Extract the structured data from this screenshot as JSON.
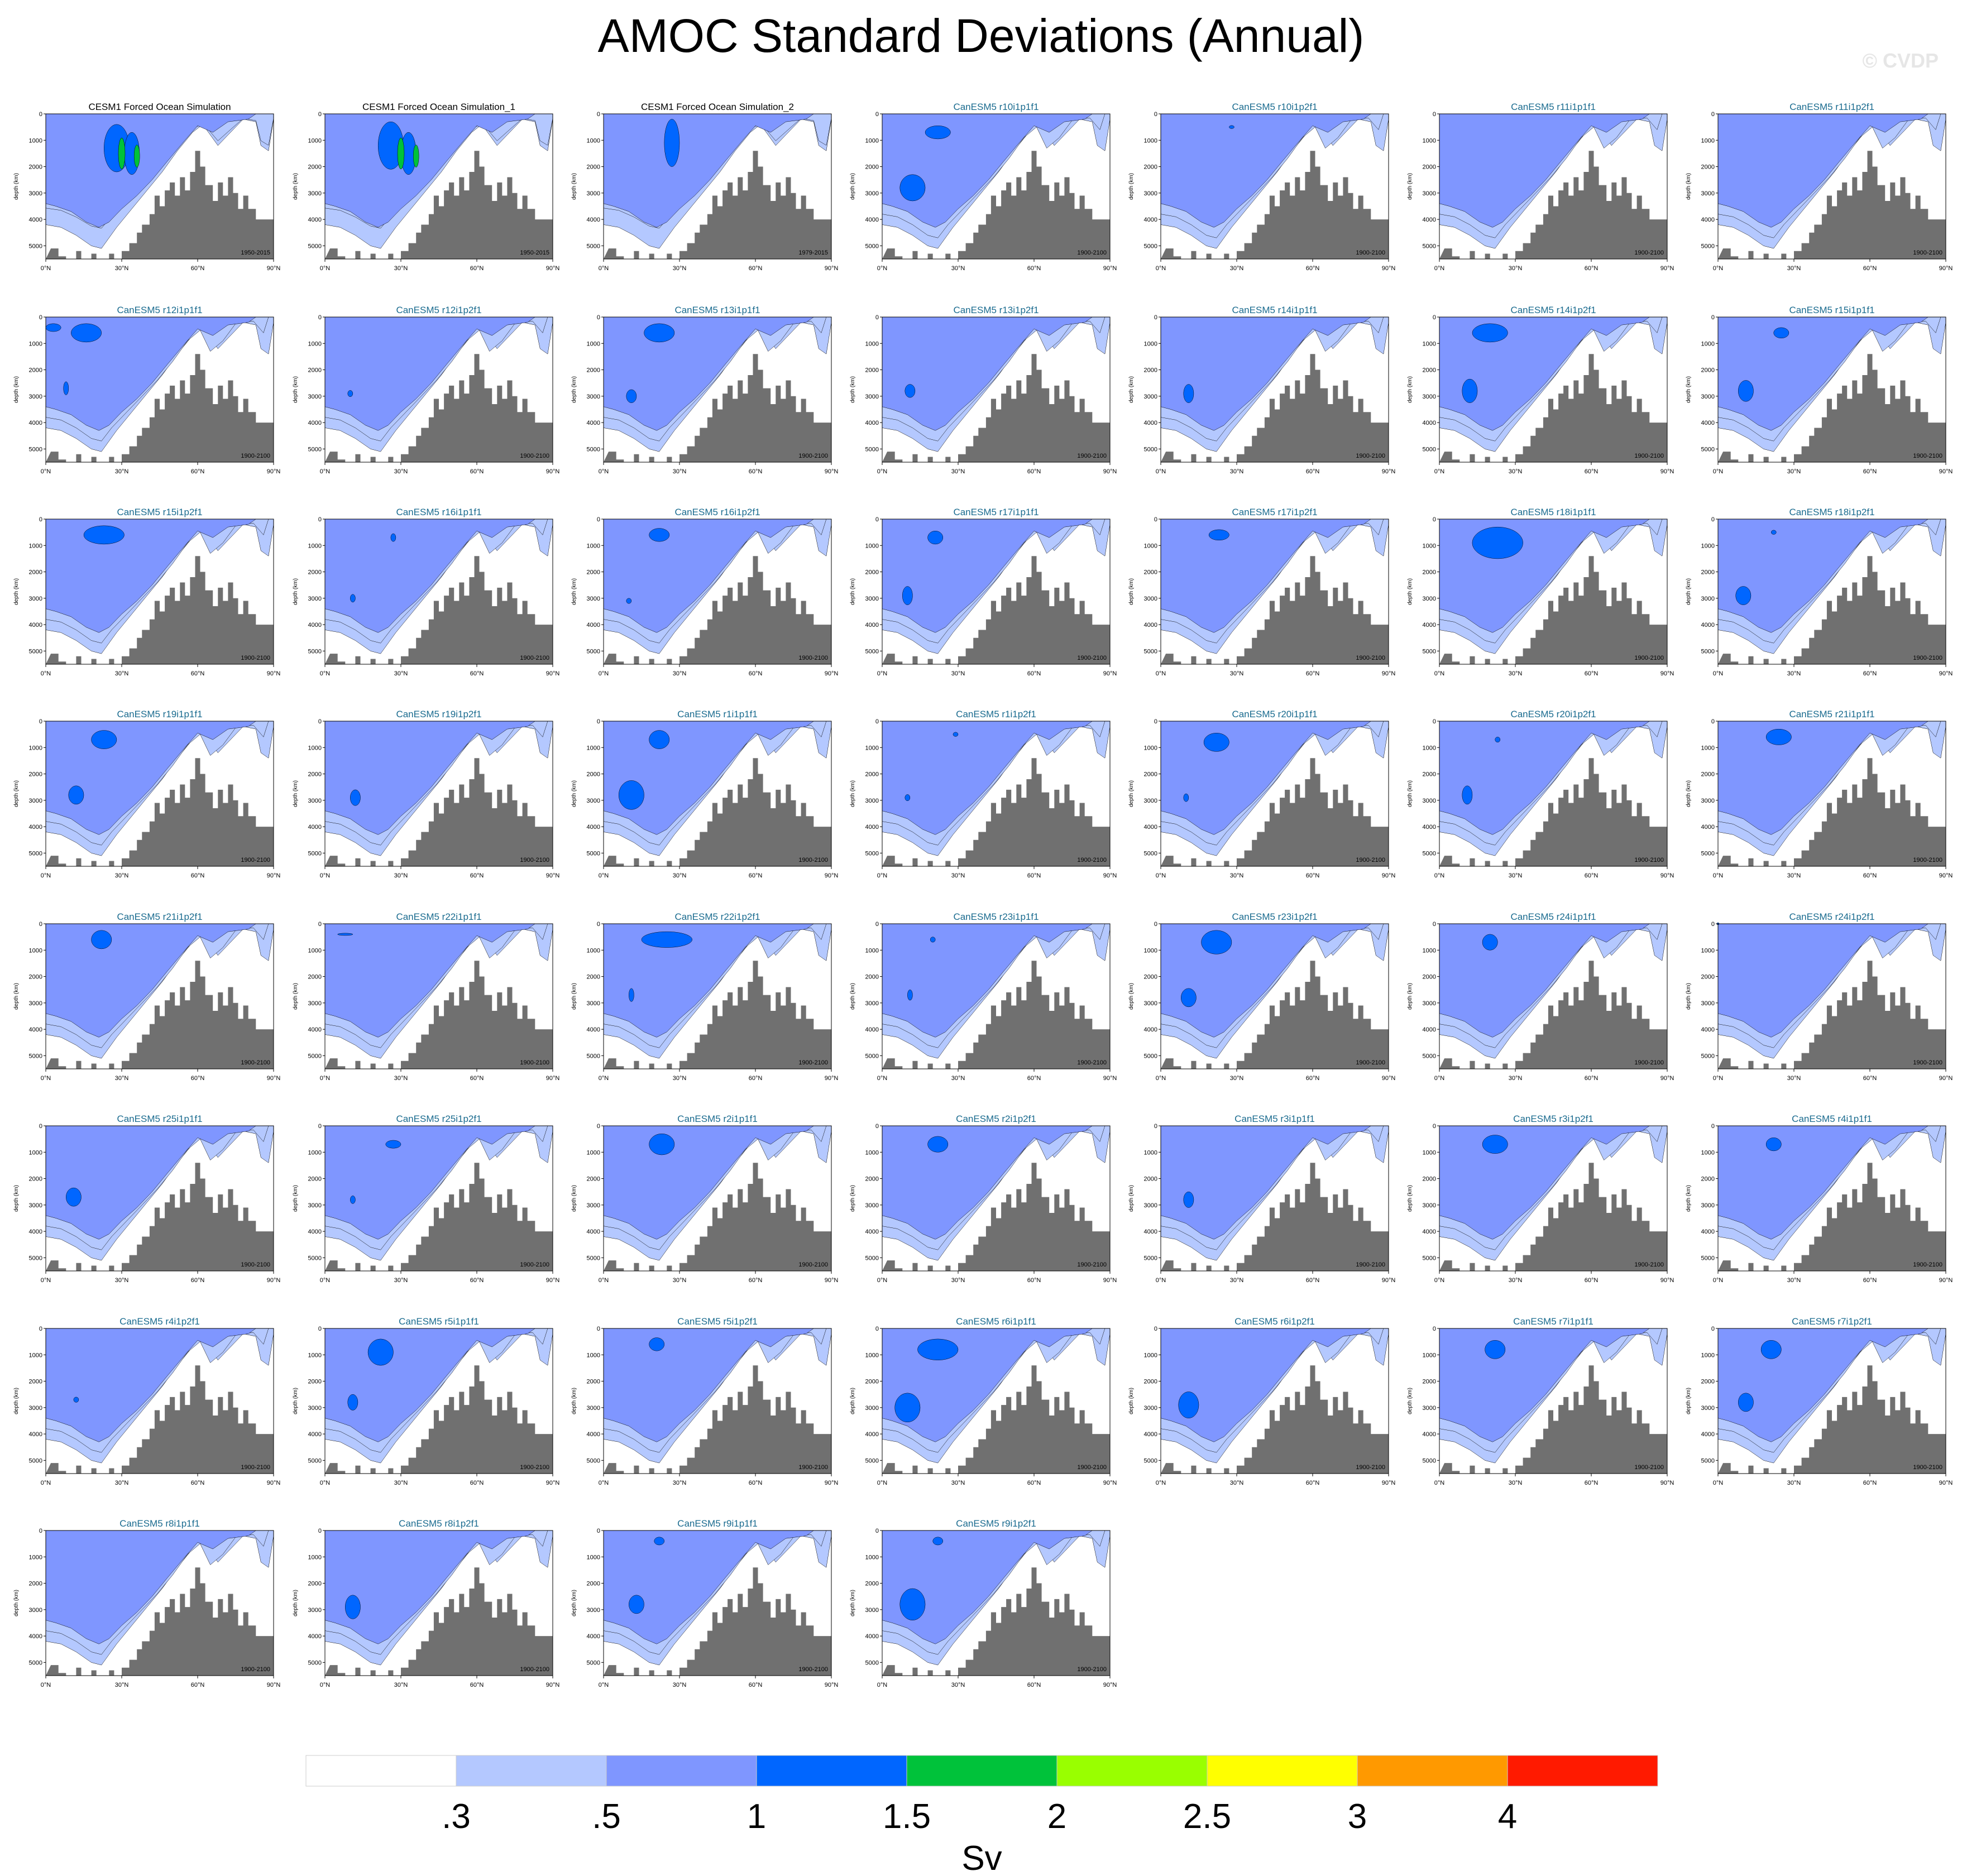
{
  "title": "AMOC Standard Deviations (Annual)",
  "watermark": "© CVDP",
  "colors": {
    "levels": [
      "#ffffff",
      "#b4c8ff",
      "#7f96ff",
      "#0066ff",
      "#00c23a",
      "#99ff00",
      "#ffff00",
      "#ff9900",
      "#ff1a00"
    ],
    "topography": "#707070",
    "title_cesm": "#000000",
    "title_canesm": "#1a6b8f"
  },
  "chart_data": {
    "type": "contour",
    "units": "Sv",
    "colorbar_labels": [
      ".3",
      ".5",
      "1",
      "1.5",
      "2",
      "2.5",
      "3",
      "4"
    ],
    "x_ticks": [
      "0°N",
      "30°N",
      "60°N",
      "90°N"
    ],
    "y_ticks": [
      "1000",
      "2000",
      "3000",
      "4000",
      "5000"
    ],
    "y_label": "depth (km)",
    "x_range": [
      0,
      90
    ],
    "y_range": [
      0,
      5500
    ],
    "panels": [
      {
        "title": "CESM1 Forced Ocean Simulation",
        "period": "1950-2015"
      },
      {
        "title": "CESM1 Forced Ocean Simulation_1",
        "period": "1950-2015"
      },
      {
        "title": "CESM1 Forced Ocean Simulation_2",
        "period": "1979-2015"
      },
      {
        "title": "CanESM5 r10i1p1f1",
        "period": "1900-2100"
      },
      {
        "title": "CanESM5 r10i1p2f1",
        "period": "1900-2100"
      },
      {
        "title": "CanESM5 r11i1p1f1",
        "period": "1900-2100"
      },
      {
        "title": "CanESM5 r11i1p2f1",
        "period": "1900-2100"
      },
      {
        "title": "CanESM5 r12i1p1f1",
        "period": "1900-2100"
      },
      {
        "title": "CanESM5 r12i1p2f1",
        "period": "1900-2100"
      },
      {
        "title": "CanESM5 r13i1p1f1",
        "period": "1900-2100"
      },
      {
        "title": "CanESM5 r13i1p2f1",
        "period": "1900-2100"
      },
      {
        "title": "CanESM5 r14i1p1f1",
        "period": "1900-2100"
      },
      {
        "title": "CanESM5 r14i1p2f1",
        "period": "1900-2100"
      },
      {
        "title": "CanESM5 r15i1p1f1",
        "period": "1900-2100"
      },
      {
        "title": "CanESM5 r15i1p2f1",
        "period": "1900-2100"
      },
      {
        "title": "CanESM5 r16i1p1f1",
        "period": "1900-2100"
      },
      {
        "title": "CanESM5 r16i1p2f1",
        "period": "1900-2100"
      },
      {
        "title": "CanESM5 r17i1p1f1",
        "period": "1900-2100"
      },
      {
        "title": "CanESM5 r17i1p2f1",
        "period": "1900-2100"
      },
      {
        "title": "CanESM5 r18i1p1f1",
        "period": "1900-2100"
      },
      {
        "title": "CanESM5 r18i1p2f1",
        "period": "1900-2100"
      },
      {
        "title": "CanESM5 r19i1p1f1",
        "period": "1900-2100"
      },
      {
        "title": "CanESM5 r19i1p2f1",
        "period": "1900-2100"
      },
      {
        "title": "CanESM5 r1i1p1f1",
        "period": "1900-2100"
      },
      {
        "title": "CanESM5 r1i1p2f1",
        "period": "1900-2100"
      },
      {
        "title": "CanESM5 r20i1p1f1",
        "period": "1900-2100"
      },
      {
        "title": "CanESM5 r20i1p2f1",
        "period": "1900-2100"
      },
      {
        "title": "CanESM5 r21i1p1f1",
        "period": "1900-2100"
      },
      {
        "title": "CanESM5 r21i1p2f1",
        "period": "1900-2100"
      },
      {
        "title": "CanESM5 r22i1p1f1",
        "period": "1900-2100"
      },
      {
        "title": "CanESM5 r22i1p2f1",
        "period": "1900-2100"
      },
      {
        "title": "CanESM5 r23i1p1f1",
        "period": "1900-2100"
      },
      {
        "title": "CanESM5 r23i1p2f1",
        "period": "1900-2100"
      },
      {
        "title": "CanESM5 r24i1p1f1",
        "period": "1900-2100"
      },
      {
        "title": "CanESM5 r24i1p2f1",
        "period": "1900-2100"
      },
      {
        "title": "CanESM5 r25i1p1f1",
        "period": "1900-2100"
      },
      {
        "title": "CanESM5 r25i1p2f1",
        "period": "1900-2100"
      },
      {
        "title": "CanESM5 r2i1p1f1",
        "period": "1900-2100"
      },
      {
        "title": "CanESM5 r2i1p2f1",
        "period": "1900-2100"
      },
      {
        "title": "CanESM5 r3i1p1f1",
        "period": "1900-2100"
      },
      {
        "title": "CanESM5 r3i1p2f1",
        "period": "1900-2100"
      },
      {
        "title": "CanESM5 r4i1p1f1",
        "period": "1900-2100"
      },
      {
        "title": "CanESM5 r4i1p2f1",
        "period": "1900-2100"
      },
      {
        "title": "CanESM5 r5i1p1f1",
        "period": "1900-2100"
      },
      {
        "title": "CanESM5 r5i1p2f1",
        "period": "1900-2100"
      },
      {
        "title": "CanESM5 r6i1p1f1",
        "period": "1900-2100"
      },
      {
        "title": "CanESM5 r6i1p2f1",
        "period": "1900-2100"
      },
      {
        "title": "CanESM5 r7i1p1f1",
        "period": "1900-2100"
      },
      {
        "title": "CanESM5 r7i1p2f1",
        "period": "1900-2100"
      },
      {
        "title": "CanESM5 r8i1p1f1",
        "period": "1900-2100"
      },
      {
        "title": "CanESM5 r8i1p2f1",
        "period": "1900-2100"
      },
      {
        "title": "CanESM5 r9i1p1f1",
        "period": "1900-2100"
      },
      {
        "title": "CanESM5 r9i1p2f1",
        "period": "1900-2100"
      }
    ]
  }
}
